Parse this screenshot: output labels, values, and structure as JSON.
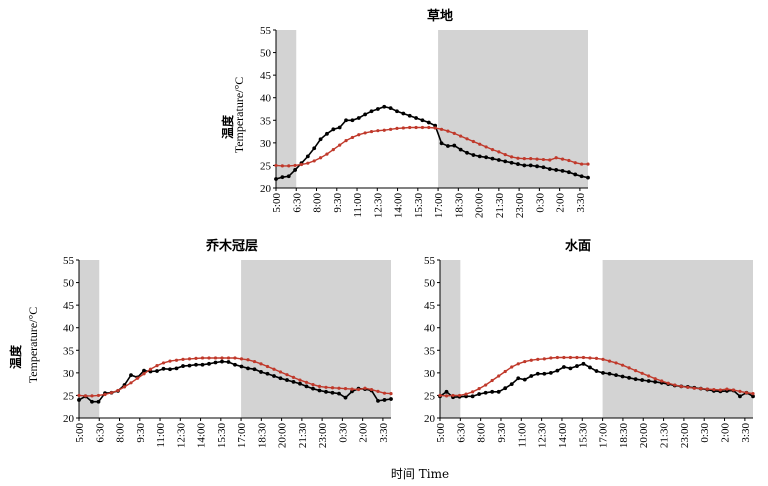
{
  "x_title": "时间 Time",
  "y_title_cn": "温度",
  "y_title_en": "Temperature/°C",
  "colors": {
    "series_black": "#000000",
    "series_red": "#c0392b",
    "shade": "#d3d3d3",
    "axis": "#000000"
  },
  "chart_data": [
    {
      "type": "line",
      "title": "草地",
      "ylim": [
        20,
        55
      ],
      "yticks": [
        20,
        25,
        30,
        35,
        40,
        45,
        50,
        55
      ],
      "xtick_labels": [
        "5:00",
        "6:30",
        "8:00",
        "9:30",
        "11:00",
        "12:30",
        "14:00",
        "15:30",
        "17:00",
        "18:30",
        "20:00",
        "21:30",
        "23:00",
        "0:30",
        "2:00",
        "3:30"
      ],
      "shaded_ranges": [
        [
          "5:00",
          "6:30"
        ],
        [
          "17:00",
          "3:30"
        ]
      ],
      "series": [
        {
          "color": "#000000",
          "values": [
            22.0,
            22.4,
            22.6,
            24.0,
            25.5,
            27.0,
            28.8,
            30.8,
            32.0,
            33.0,
            33.4,
            35.0,
            35.0,
            35.5,
            36.3,
            37.0,
            37.5,
            38.0,
            37.7,
            37.0,
            36.5,
            36.0,
            35.5,
            35.0,
            34.5,
            33.8,
            29.9,
            29.3,
            29.4,
            28.5,
            27.8,
            27.3,
            27.0,
            26.8,
            26.5,
            26.2,
            25.9,
            25.6,
            25.3,
            25.0,
            25.0,
            24.8,
            24.6,
            24.2,
            24.0,
            23.8,
            23.5,
            23.0,
            22.6,
            22.3
          ]
        },
        {
          "color": "#c0392b",
          "values": [
            25.0,
            24.9,
            24.9,
            25.0,
            25.2,
            25.5,
            26.0,
            26.7,
            27.5,
            28.5,
            29.5,
            30.5,
            31.2,
            31.8,
            32.2,
            32.5,
            32.7,
            32.8,
            33.0,
            33.2,
            33.3,
            33.4,
            33.4,
            33.4,
            33.4,
            33.3,
            33.0,
            32.6,
            32.1,
            31.5,
            30.9,
            30.3,
            29.7,
            29.1,
            28.5,
            28.0,
            27.4,
            26.9,
            26.6,
            26.5,
            26.5,
            26.4,
            26.3,
            26.2,
            26.7,
            26.4,
            26.1,
            25.6,
            25.3,
            25.3
          ]
        }
      ]
    },
    {
      "type": "line",
      "title": "乔木冠层",
      "ylim": [
        20,
        55
      ],
      "yticks": [
        20,
        25,
        30,
        35,
        40,
        45,
        50,
        55
      ],
      "xtick_labels": [
        "5:00",
        "6:30",
        "8:00",
        "9:30",
        "11:00",
        "12:30",
        "14:00",
        "15:30",
        "17:00",
        "18:30",
        "20:00",
        "21:30",
        "23:00",
        "0:30",
        "2:00",
        "3:30"
      ],
      "shaded_ranges": [
        [
          "5:00",
          "6:30"
        ],
        [
          "17:00",
          "3:30"
        ]
      ],
      "series": [
        {
          "color": "#000000",
          "values": [
            24.0,
            24.8,
            23.6,
            23.6,
            25.5,
            25.6,
            26.0,
            27.3,
            29.5,
            29.0,
            30.5,
            30.3,
            30.4,
            30.9,
            30.8,
            31.0,
            31.5,
            31.6,
            31.8,
            31.8,
            32.0,
            32.3,
            32.5,
            32.4,
            31.8,
            31.4,
            31.0,
            30.8,
            30.2,
            29.8,
            29.3,
            28.8,
            28.4,
            28.0,
            27.6,
            27.0,
            26.5,
            26.1,
            25.8,
            25.6,
            25.4,
            24.5,
            25.9,
            26.5,
            26.4,
            26.1,
            23.8,
            24.0,
            24.2
          ]
        },
        {
          "color": "#c0392b",
          "values": [
            25.0,
            24.9,
            24.9,
            25.0,
            25.2,
            25.6,
            26.1,
            26.9,
            27.8,
            28.8,
            29.8,
            30.8,
            31.6,
            32.2,
            32.6,
            32.8,
            33.0,
            33.1,
            33.2,
            33.3,
            33.3,
            33.3,
            33.3,
            33.3,
            33.3,
            33.1,
            32.9,
            32.5,
            32.0,
            31.4,
            30.8,
            30.2,
            29.6,
            29.0,
            28.4,
            27.9,
            27.4,
            27.0,
            26.8,
            26.7,
            26.6,
            26.5,
            26.4,
            26.3,
            26.6,
            26.3,
            25.9,
            25.5,
            25.4
          ]
        }
      ]
    },
    {
      "type": "line",
      "title": "水面",
      "ylim": [
        20,
        55
      ],
      "yticks": [
        20,
        25,
        30,
        35,
        40,
        45,
        50,
        55
      ],
      "xtick_labels": [
        "5:00",
        "6:30",
        "8:00",
        "9:30",
        "11:00",
        "12:30",
        "14:00",
        "15:30",
        "17:00",
        "18:30",
        "20:00",
        "21:30",
        "23:00",
        "0:30",
        "2:00",
        "3:30"
      ],
      "shaded_ranges": [
        [
          "5:00",
          "6:30"
        ],
        [
          "17:00",
          "3:30"
        ]
      ],
      "series": [
        {
          "color": "#000000",
          "values": [
            24.8,
            25.8,
            24.6,
            24.7,
            24.8,
            24.8,
            25.3,
            25.6,
            25.8,
            25.8,
            26.6,
            27.5,
            28.8,
            28.5,
            29.3,
            29.8,
            29.8,
            30.0,
            30.5,
            31.3,
            31.0,
            31.5,
            32.0,
            31.2,
            30.4,
            30.0,
            29.8,
            29.5,
            29.2,
            28.9,
            28.6,
            28.4,
            28.2,
            28.0,
            27.8,
            27.5,
            27.2,
            27.0,
            26.9,
            26.7,
            26.5,
            26.3,
            26.0,
            25.9,
            26.0,
            26.1,
            24.8,
            25.6,
            24.8
          ]
        },
        {
          "color": "#c0392b",
          "values": [
            25.0,
            24.9,
            25.0,
            25.0,
            25.3,
            25.8,
            26.5,
            27.3,
            28.3,
            29.3,
            30.3,
            31.3,
            32.0,
            32.5,
            32.8,
            33.0,
            33.1,
            33.3,
            33.4,
            33.4,
            33.4,
            33.4,
            33.4,
            33.3,
            33.2,
            33.0,
            32.6,
            32.2,
            31.7,
            31.1,
            30.5,
            29.9,
            29.3,
            28.7,
            28.2,
            27.7,
            27.3,
            27.0,
            26.8,
            26.6,
            26.5,
            26.4,
            26.3,
            26.2,
            26.4,
            26.2,
            25.9,
            25.6,
            25.4
          ]
        }
      ]
    }
  ]
}
